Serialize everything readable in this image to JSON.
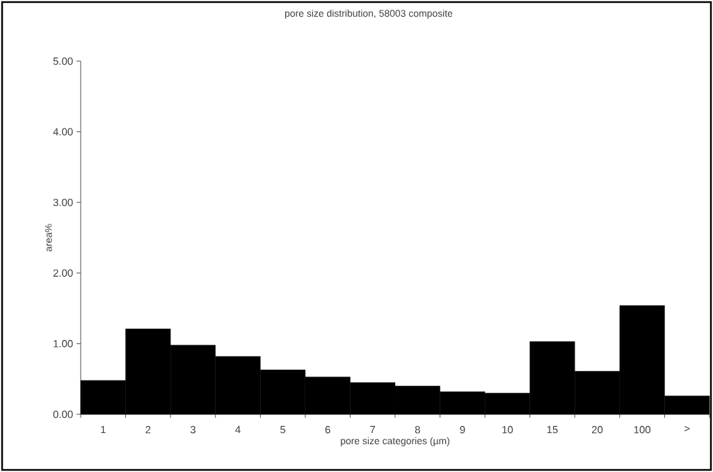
{
  "chart_data": {
    "type": "bar",
    "title": "pore size distribution, 58003 composite",
    "xlabel": "pore size categories (µm)",
    "ylabel": "area%",
    "categories": [
      "1",
      "2",
      "3",
      "4",
      "5",
      "6",
      "7",
      "8",
      "9",
      "10",
      "15",
      "20",
      "100",
      ">"
    ],
    "values": [
      0.48,
      1.21,
      0.98,
      0.82,
      0.63,
      0.53,
      0.45,
      0.4,
      0.32,
      0.3,
      1.03,
      0.61,
      1.54,
      0.26
    ],
    "color": "#000000",
    "ylim": [
      0,
      5
    ],
    "yticks": [
      {
        "value": 0,
        "label": "0.00"
      },
      {
        "value": 1,
        "label": "1.00"
      },
      {
        "value": 2,
        "label": "2.00"
      },
      {
        "value": 3,
        "label": "3.00"
      },
      {
        "value": 4,
        "label": "4.00"
      },
      {
        "value": 5,
        "label": "5.00"
      }
    ],
    "grid": false
  }
}
